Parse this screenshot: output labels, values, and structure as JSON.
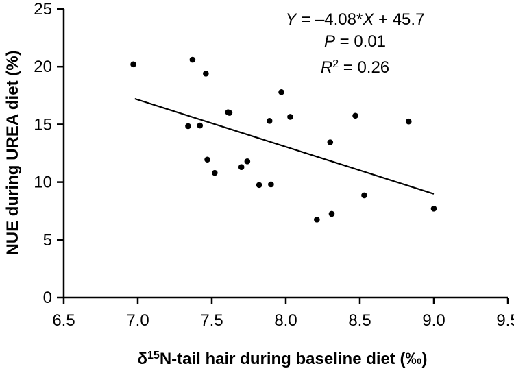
{
  "chart_data": {
    "type": "scatter",
    "xlabel_prefix": "δ",
    "xlabel_superscript": "15",
    "xlabel_rest": "N-tail hair during baseline diet (‰)",
    "ylabel": "NUE during UREA diet (%)",
    "xlim": [
      6.5,
      9.5
    ],
    "ylim": [
      0,
      25
    ],
    "x_ticks": [
      "6.5",
      "7.0",
      "7.5",
      "8.0",
      "8.5",
      "9.0",
      "9.5"
    ],
    "y_ticks": [
      "0",
      "5",
      "10",
      "15",
      "20",
      "25"
    ],
    "grid": false,
    "points": [
      {
        "x": 6.97,
        "y": 20.2
      },
      {
        "x": 7.34,
        "y": 14.85
      },
      {
        "x": 7.37,
        "y": 20.6
      },
      {
        "x": 7.42,
        "y": 14.9
      },
      {
        "x": 7.46,
        "y": 19.4
      },
      {
        "x": 7.47,
        "y": 11.95
      },
      {
        "x": 7.52,
        "y": 10.8
      },
      {
        "x": 7.61,
        "y": 16.05
      },
      {
        "x": 7.62,
        "y": 16.0
      },
      {
        "x": 7.7,
        "y": 11.3
      },
      {
        "x": 7.74,
        "y": 11.8
      },
      {
        "x": 7.82,
        "y": 9.75
      },
      {
        "x": 7.89,
        "y": 15.3
      },
      {
        "x": 7.9,
        "y": 9.8
      },
      {
        "x": 7.97,
        "y": 17.8
      },
      {
        "x": 8.03,
        "y": 15.65
      },
      {
        "x": 8.21,
        "y": 6.75
      },
      {
        "x": 8.3,
        "y": 13.45
      },
      {
        "x": 8.31,
        "y": 7.25
      },
      {
        "x": 8.47,
        "y": 15.75
      },
      {
        "x": 8.53,
        "y": 8.85
      },
      {
        "x": 8.83,
        "y": 15.25
      },
      {
        "x": 9.0,
        "y": 7.7
      }
    ],
    "trendline": {
      "slope": -4.08,
      "intercept": 45.7,
      "x_start": 6.98,
      "x_end": 9.0
    },
    "annotations": {
      "equation": {
        "y_var": "Y",
        "op": " = –4.08*",
        "x_var": "X",
        "tail": " + 45.7"
      },
      "p_value": {
        "var": "P",
        "rest": " = 0.01"
      },
      "r_squared": {
        "var": "R",
        "sup": "2",
        "rest": " = 0.26"
      }
    }
  }
}
